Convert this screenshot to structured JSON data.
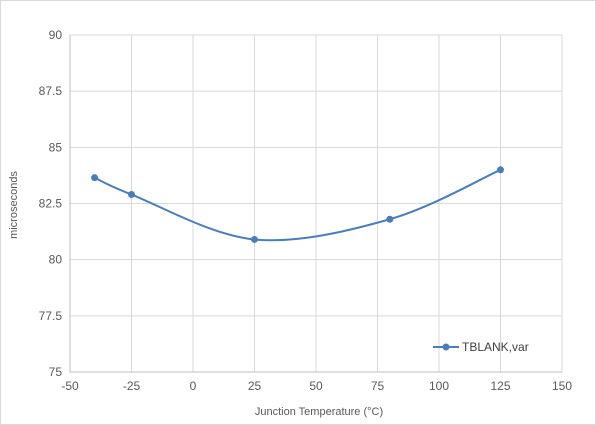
{
  "chart_data": {
    "type": "line",
    "title": "",
    "xlabel": "Junction Temperature (°C)",
    "ylabel": "microseconds",
    "xlim": [
      -50,
      150
    ],
    "ylim": [
      75,
      90
    ],
    "x_ticks": [
      "-50",
      "-25",
      "0",
      "25",
      "50",
      "75",
      "100",
      "125",
      "150"
    ],
    "y_ticks": [
      "75",
      "77.5",
      "80",
      "82.5",
      "85",
      "87.5",
      "90"
    ],
    "x_tick_values": [
      -50,
      -25,
      0,
      25,
      50,
      75,
      100,
      125,
      150
    ],
    "y_tick_values": [
      75,
      77.5,
      80,
      82.5,
      85,
      87.5,
      90
    ],
    "grid": true,
    "smooth": true,
    "legend_position": "bottom-right",
    "series": [
      {
        "name": "TBLANK,var",
        "color": "#4a7ebb",
        "x": [
          -40,
          -25,
          25,
          80,
          125
        ],
        "y": [
          83.65,
          82.9,
          80.9,
          81.8,
          84.0
        ]
      }
    ]
  }
}
